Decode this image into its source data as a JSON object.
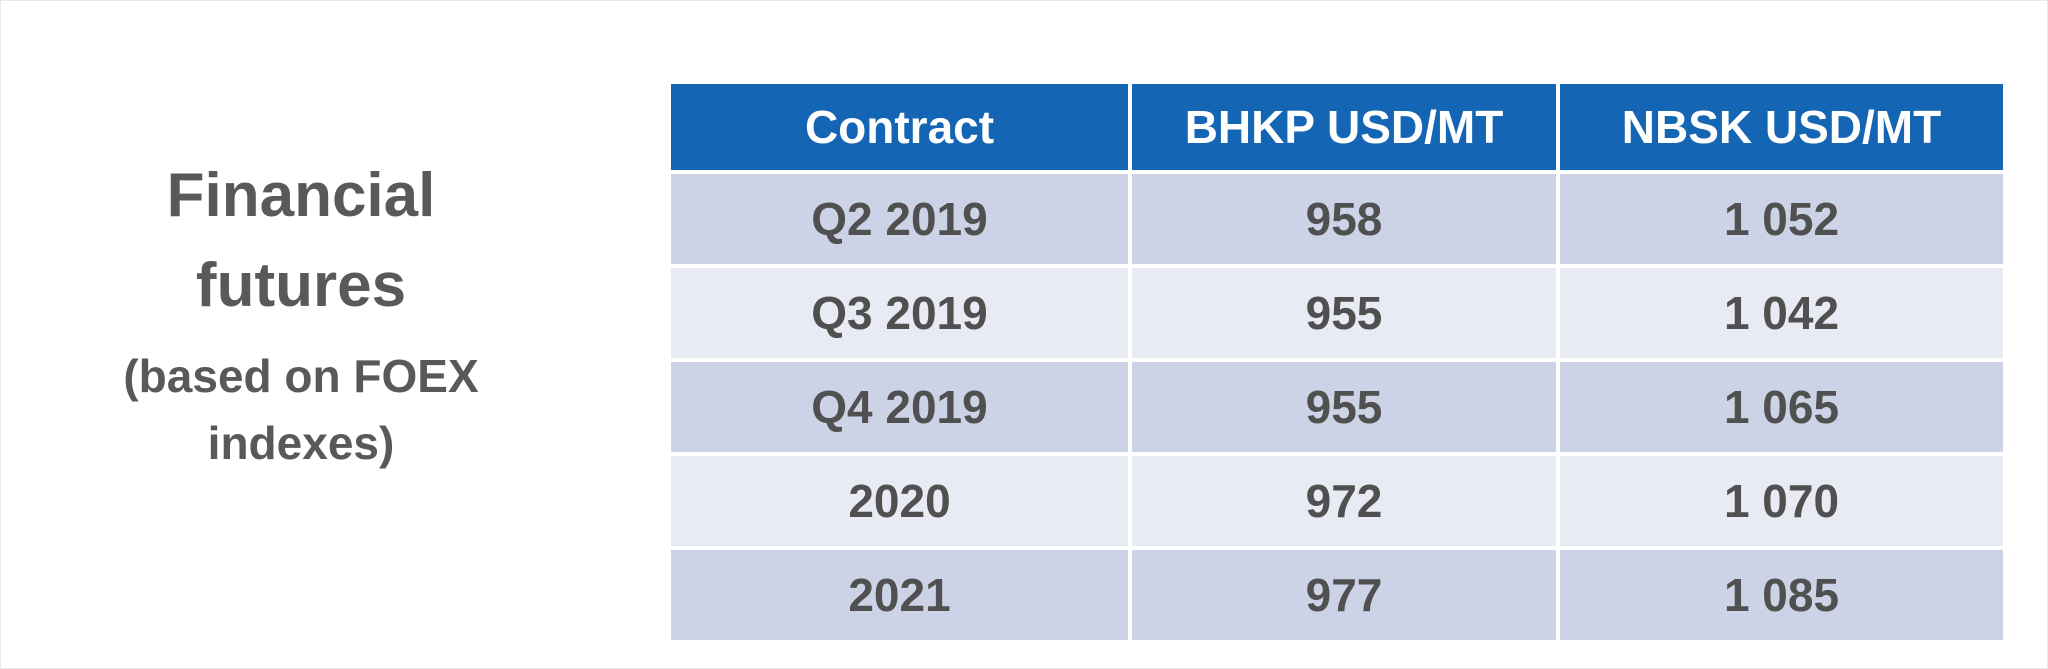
{
  "heading": {
    "title_line1": "Financial",
    "title_line2": "futures",
    "subtitle_line1": "(based on FOEX",
    "subtitle_line2": "indexes)"
  },
  "table": {
    "columns": [
      "Contract",
      "BHKP USD/MT",
      "NBSK USD/MT"
    ],
    "rows": [
      [
        "Q2 2019",
        "958",
        "1 052"
      ],
      [
        "Q3 2019",
        "955",
        "1 042"
      ],
      [
        "Q4 2019",
        "955",
        "1 065"
      ],
      [
        "2020",
        "972",
        "1 070"
      ],
      [
        "2021",
        "977",
        "1 085"
      ]
    ]
  },
  "colors": {
    "header_background": "#1565b5",
    "header_text": "#ffffff",
    "row_dark": "#cdd3e6",
    "row_light": "#e8eaf4",
    "text": "#595959"
  }
}
